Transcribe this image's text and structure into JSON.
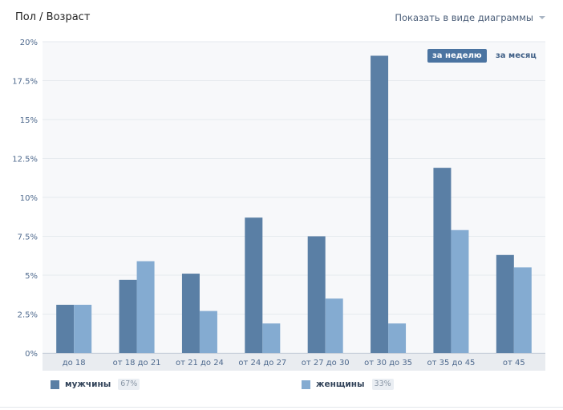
{
  "header": {
    "title": "Пол / Возраст",
    "view_toggle_label": "Показать в виде диаграммы"
  },
  "period_tabs": {
    "week": "за неделю",
    "month": "за месяц"
  },
  "legend": {
    "male_label": "мужчины",
    "male_pct": "67%",
    "female_label": "женщины",
    "female_pct": "33%"
  },
  "colors": {
    "male": "#5a7fa5",
    "female": "#84abd1",
    "plot_bg": "#f7f8fa",
    "grid": "#e6eaee",
    "axis_text": "#4f6a8e"
  },
  "chart_data": {
    "type": "bar",
    "categories": [
      "до 18",
      "от 18 до 21",
      "от 21 до 24",
      "от 24 до 27",
      "от 27 до 30",
      "от 30 до 35",
      "от 35 до 45",
      "от 45"
    ],
    "series": [
      {
        "name": "мужчины",
        "values": [
          3.1,
          4.7,
          5.1,
          8.7,
          7.5,
          19.1,
          11.9,
          6.3
        ]
      },
      {
        "name": "женщины",
        "values": [
          3.1,
          5.9,
          2.7,
          1.9,
          3.5,
          1.9,
          7.9,
          5.5
        ]
      }
    ],
    "ylim": [
      0,
      20
    ],
    "yticks": [
      0,
      2.5,
      5,
      7.5,
      10,
      12.5,
      15,
      17.5,
      20
    ],
    "ytick_labels": [
      "0%",
      "2.5%",
      "5%",
      "7.5%",
      "10%",
      "12.5%",
      "15%",
      "17.5%",
      "20%"
    ],
    "grid": true,
    "legend_position": "bottom-left"
  }
}
